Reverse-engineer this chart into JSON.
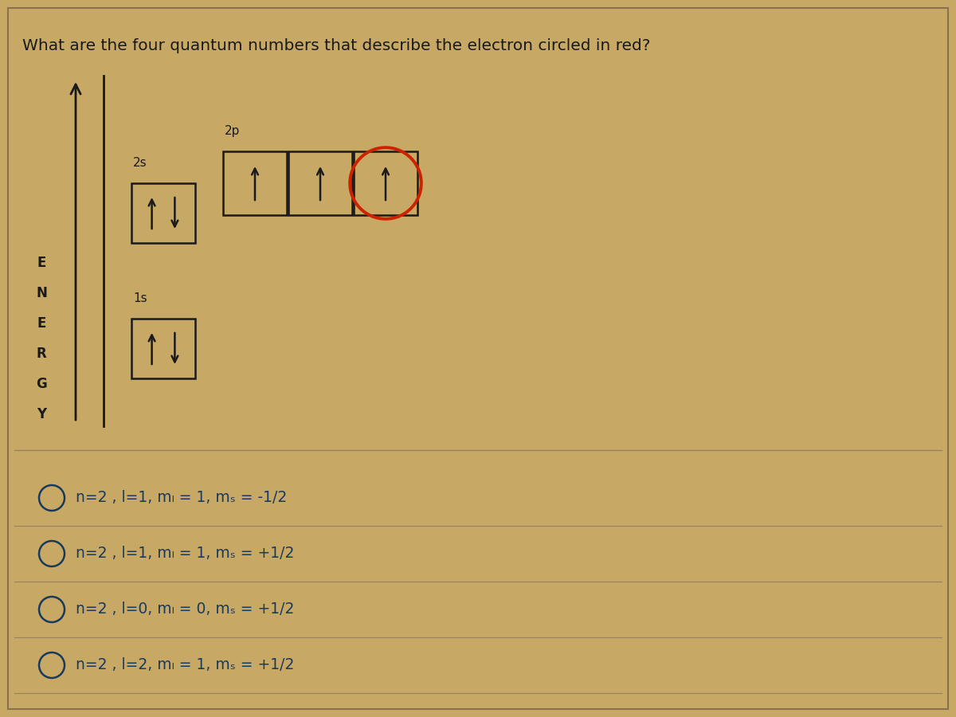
{
  "background_color": "#c8a865",
  "title": "What are the four quantum numbers that describe the electron circled in red?",
  "title_fontsize": 14.5,
  "title_color": "#1a1a1a",
  "choice_color": "#1a3a5c",
  "divider_color": "#9b8060",
  "red_circle_color": "#cc2200",
  "choices": [
    "n=2 , l=1, mₗ = 1, mₛ = -1/2",
    "n=2 , l=1, mₗ = 1, mₛ = +1/2",
    "n=2 , l=0, mₗ = 0, mₛ = +1/2",
    "n=2 , l=2, mₗ = 1, mₛ = +1/2"
  ]
}
